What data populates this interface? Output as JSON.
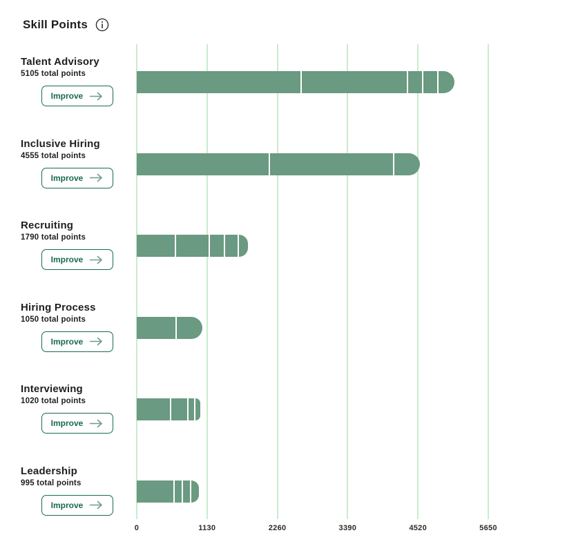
{
  "header": {
    "title": "Skill Points",
    "info_icon": "info-icon"
  },
  "buttons": {
    "improve_label": "Improve",
    "arrow_icon": "arrow-right-icon"
  },
  "skills": [
    {
      "name": "Talent Advisory",
      "points_label": "5105 total points"
    },
    {
      "name": "Inclusive Hiring",
      "points_label": "4555 total points"
    },
    {
      "name": "Recruiting",
      "points_label": "1790 total points"
    },
    {
      "name": "Hiring Process",
      "points_label": "1050 total points"
    },
    {
      "name": "Interviewing",
      "points_label": "1020 total points"
    },
    {
      "name": "Leadership",
      "points_label": "995 total points"
    }
  ],
  "chart_data": {
    "type": "bar",
    "orientation": "horizontal",
    "stacked": true,
    "title": "Skill Points",
    "xlabel": "",
    "ylabel": "",
    "categories": [
      "Talent Advisory",
      "Inclusive Hiring",
      "Recruiting",
      "Hiring Process",
      "Interviewing",
      "Leadership"
    ],
    "totals": [
      5105,
      4555,
      1790,
      1050,
      1020,
      995
    ],
    "segments": [
      [
        2675,
        1725,
        225,
        225,
        255
      ],
      [
        2140,
        2000,
        415
      ],
      [
        640,
        550,
        240,
        205,
        155
      ],
      [
        635,
        415
      ],
      [
        575,
        265,
        100,
        80
      ],
      [
        630,
        125,
        110,
        130
      ]
    ],
    "x_ticks": [
      0,
      1130,
      2260,
      3390,
      4520,
      5650
    ],
    "xlim": [
      0,
      5650
    ],
    "grid": "vertical",
    "legend": "none",
    "bar_color": "#6a9a81",
    "gridline_color": "#c9eccb",
    "button_border_color": "#186a50"
  }
}
